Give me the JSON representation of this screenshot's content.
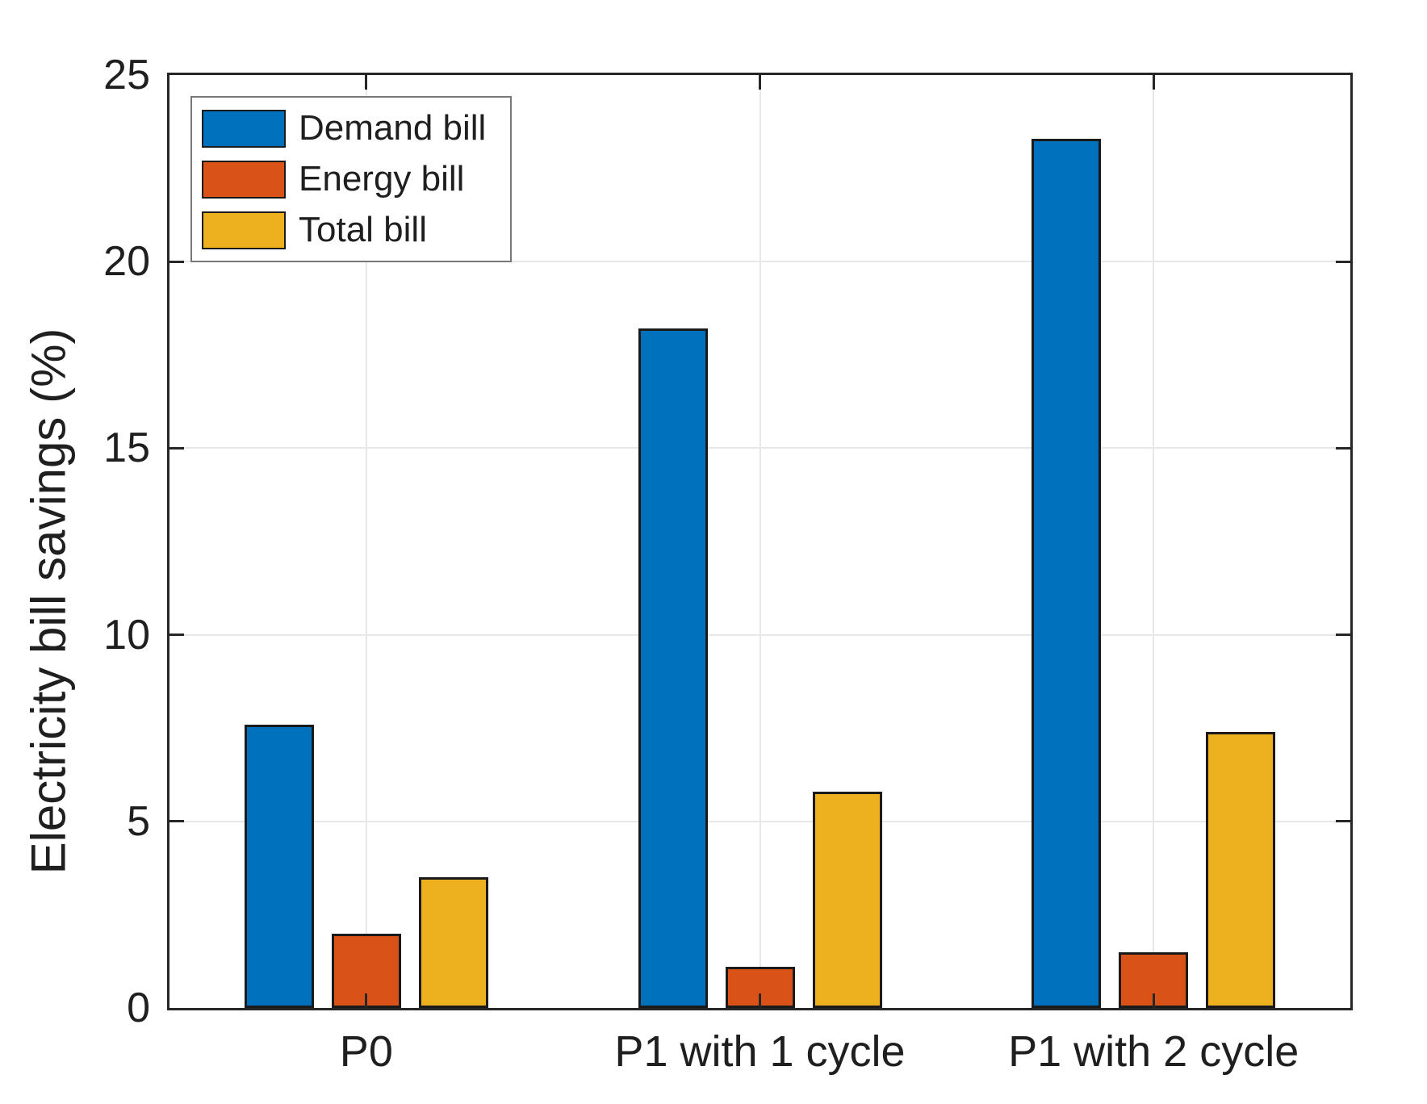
{
  "chart_data": {
    "type": "bar",
    "title": "",
    "xlabel": "",
    "ylabel": "Electricity bill savings (%)",
    "ylim": [
      0,
      25
    ],
    "yticks": [
      0,
      5,
      10,
      15,
      20,
      25
    ],
    "grid": true,
    "legend_position": "upper-left",
    "categories": [
      "P0",
      "P1 with 1 cycle",
      "P1 with 2 cycle"
    ],
    "series": [
      {
        "name": "Demand bill",
        "color": "#0072BD",
        "values": [
          7.6,
          18.2,
          23.3
        ]
      },
      {
        "name": "Energy bill",
        "color": "#D95319",
        "values": [
          2.0,
          1.1,
          1.5
        ]
      },
      {
        "name": "Total bill",
        "color": "#EDB120",
        "values": [
          3.5,
          5.8,
          7.4
        ]
      }
    ],
    "colors": {
      "axis": "#262626",
      "grid": "#e8e8e8",
      "bar_edge": "#1a1a1a",
      "legend_border": "#777777",
      "text": "#1f1f1f",
      "background": "#ffffff"
    }
  }
}
